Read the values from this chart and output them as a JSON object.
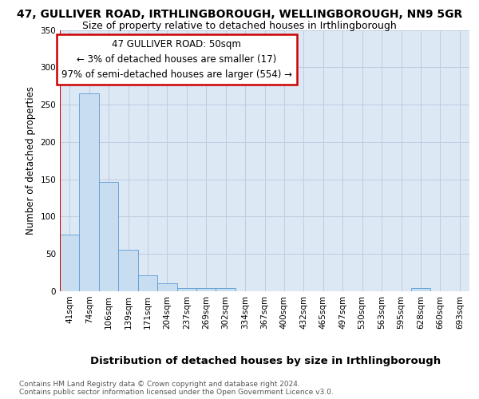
{
  "title1": "47, GULLIVER ROAD, IRTHLINGBOROUGH, WELLINGBOROUGH, NN9 5GR",
  "title2": "Size of property relative to detached houses in Irthlingborough",
  "xlabel": "Distribution of detached houses by size in Irthlingborough",
  "ylabel": "Number of detached properties",
  "footnote": "Contains HM Land Registry data © Crown copyright and database right 2024.\nContains public sector information licensed under the Open Government Licence v3.0.",
  "bin_labels": [
    "41sqm",
    "74sqm",
    "106sqm",
    "139sqm",
    "171sqm",
    "204sqm",
    "237sqm",
    "269sqm",
    "302sqm",
    "334sqm",
    "367sqm",
    "400sqm",
    "432sqm",
    "465sqm",
    "497sqm",
    "530sqm",
    "563sqm",
    "595sqm",
    "628sqm",
    "660sqm",
    "693sqm"
  ],
  "bar_heights": [
    76,
    265,
    146,
    56,
    21,
    11,
    4,
    4,
    4,
    0,
    0,
    0,
    0,
    0,
    0,
    0,
    0,
    0,
    4,
    0,
    0
  ],
  "bar_color": "#c8ddf0",
  "bar_edge_color": "#5b9bd5",
  "annotation_text": "47 GULLIVER ROAD: 50sqm\n← 3% of detached houses are smaller (17)\n97% of semi-detached houses are larger (554) →",
  "annotation_box_facecolor": "white",
  "annotation_box_edgecolor": "#cc0000",
  "ylim": [
    0,
    350
  ],
  "yticks": [
    0,
    50,
    100,
    150,
    200,
    250,
    300,
    350
  ],
  "grid_color": "#c0cce0",
  "plot_bg_color": "#dde8f5",
  "fig_bg_color": "#ffffff",
  "title1_fontsize": 10,
  "title2_fontsize": 9,
  "xlabel_fontsize": 9.5,
  "ylabel_fontsize": 8.5,
  "tick_fontsize": 7.5,
  "annotation_fontsize": 8.5,
  "footnote_fontsize": 6.5,
  "red_line_color": "#cc0000",
  "red_line_x": -0.5
}
